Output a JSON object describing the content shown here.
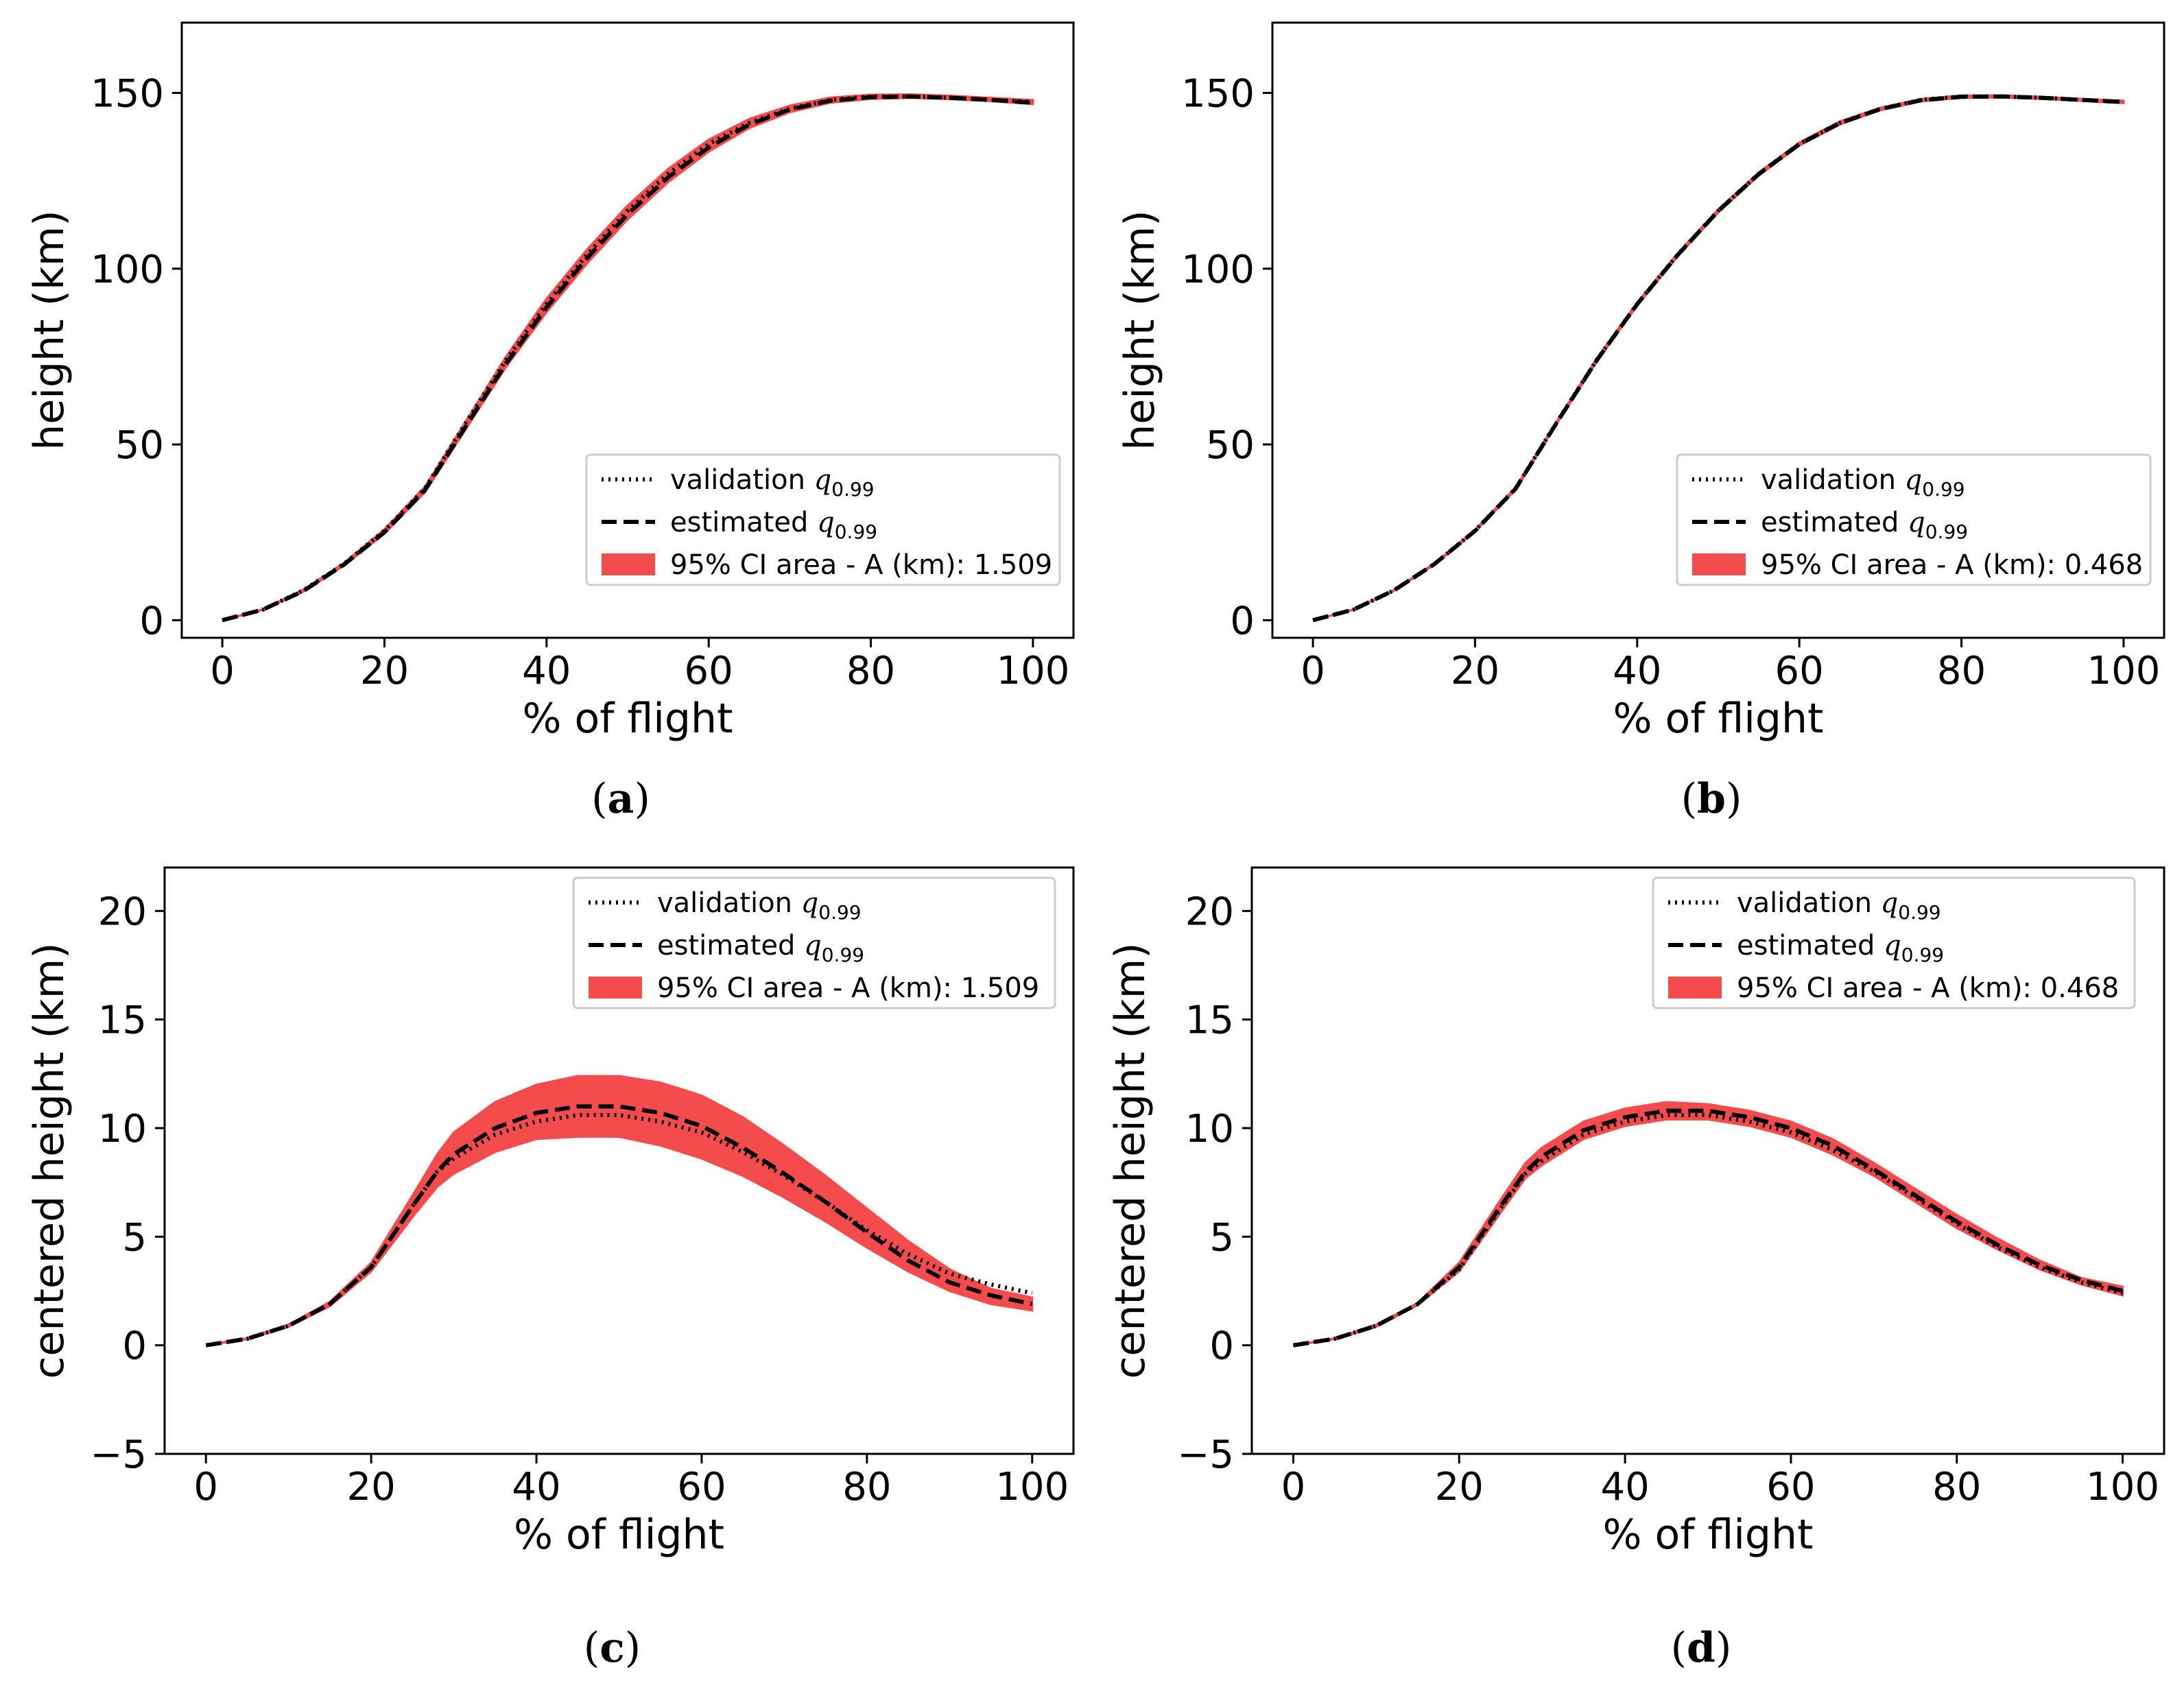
{
  "chart_data": [
    {
      "type": "line",
      "panel": "a",
      "caption": "(a)",
      "title": "",
      "xlabel": "% of flight",
      "ylabel": "height (km)",
      "xlim": [
        -5,
        105
      ],
      "ylim": [
        -5,
        170
      ],
      "xticks": [
        0,
        20,
        40,
        60,
        80,
        100
      ],
      "yticks": [
        0,
        50,
        100,
        150
      ],
      "grid": false,
      "legend_position": "lower-right",
      "x": [
        0,
        5,
        10,
        15,
        20,
        25,
        30,
        35,
        40,
        45,
        50,
        55,
        60,
        65,
        70,
        75,
        80,
        85,
        90,
        95,
        100
      ],
      "series": [
        {
          "name": "validation q0.99",
          "label_main": "validation ",
          "label_sub": "0.99",
          "style": "dotted",
          "values": [
            0,
            3,
            8.5,
            16,
            25.5,
            37.5,
            56,
            74,
            90,
            104,
            116.5,
            127,
            135.5,
            141.5,
            145.5,
            148,
            149,
            149,
            148.6,
            148,
            147.5
          ]
        },
        {
          "name": "estimated q0.99",
          "label_main": "estimated ",
          "label_sub": "0.99",
          "style": "dashed",
          "values": [
            0,
            3,
            8.3,
            15.8,
            25,
            37,
            55,
            73,
            89,
            103,
            115.5,
            126,
            134.5,
            141,
            145.3,
            147.8,
            148.8,
            149,
            148.6,
            148,
            147.2
          ]
        },
        {
          "name": "95% CI area - A (km): 1.509",
          "style": "band",
          "color": "#f44c4c",
          "lower": [
            0,
            2.9,
            8.1,
            15.5,
            24.6,
            36.4,
            54.2,
            72,
            87.6,
            101.5,
            114,
            124.6,
            133.3,
            140,
            144.5,
            147.2,
            148.3,
            148.6,
            148.2,
            147.6,
            146.8
          ],
          "upper": [
            0,
            3.1,
            8.7,
            16.3,
            25.9,
            38,
            56.5,
            75,
            91.5,
            105.5,
            118,
            128.4,
            136.7,
            142.6,
            146.4,
            148.7,
            149.5,
            149.6,
            149.2,
            148.6,
            148
          ]
        }
      ]
    },
    {
      "type": "line",
      "panel": "b",
      "caption": "(b)",
      "title": "",
      "xlabel": "% of flight",
      "ylabel": "height (km)",
      "xlim": [
        -5,
        105
      ],
      "ylim": [
        -5,
        170
      ],
      "xticks": [
        0,
        20,
        40,
        60,
        80,
        100
      ],
      "yticks": [
        0,
        50,
        100,
        150
      ],
      "grid": false,
      "legend_position": "lower-right",
      "x": [
        0,
        5,
        10,
        15,
        20,
        25,
        30,
        35,
        40,
        45,
        50,
        55,
        60,
        65,
        70,
        75,
        80,
        85,
        90,
        95,
        100
      ],
      "series": [
        {
          "name": "validation q0.99",
          "label_main": "validation ",
          "label_sub": "0.99",
          "style": "dotted",
          "values": [
            0,
            3,
            8.5,
            16,
            25.5,
            37.5,
            56,
            74,
            90,
            104,
            116.5,
            127,
            135.5,
            141.5,
            145.5,
            148,
            149,
            149,
            148.6,
            148,
            147.5
          ]
        },
        {
          "name": "estimated q0.99",
          "label_main": "estimated ",
          "label_sub": "0.99",
          "style": "dashed",
          "values": [
            0,
            3,
            8.5,
            16,
            25.4,
            37.4,
            55.9,
            73.9,
            89.9,
            103.9,
            116.4,
            126.9,
            135.4,
            141.4,
            145.4,
            147.9,
            148.9,
            149,
            148.6,
            148,
            147.4
          ]
        },
        {
          "name": "95% CI area - A (km): 0.468",
          "style": "band",
          "color": "#f44c4c",
          "lower": [
            0,
            2.95,
            8.4,
            15.8,
            25.2,
            37.1,
            55.6,
            73.5,
            89.5,
            103.5,
            116,
            126.5,
            135,
            141,
            145.1,
            147.6,
            148.6,
            148.7,
            148.3,
            147.7,
            147.1
          ],
          "upper": [
            0,
            3.05,
            8.6,
            16.2,
            25.7,
            37.8,
            56.3,
            74.4,
            90.4,
            104.4,
            116.9,
            127.4,
            135.9,
            141.9,
            145.8,
            148.3,
            149.3,
            149.3,
            148.9,
            148.3,
            147.8
          ]
        }
      ]
    },
    {
      "type": "line",
      "panel": "c",
      "caption": "(c)",
      "title": "",
      "xlabel": "% of flight",
      "ylabel": "centered height (km)",
      "xlim": [
        -5,
        105
      ],
      "ylim": [
        -5,
        22
      ],
      "xticks": [
        0,
        20,
        40,
        60,
        80,
        100
      ],
      "yticks": [
        -5,
        0,
        5,
        10,
        15,
        20
      ],
      "grid": false,
      "legend_position": "top-right",
      "x": [
        0,
        5,
        10,
        15,
        20,
        25,
        28,
        30,
        35,
        40,
        45,
        50,
        55,
        60,
        65,
        70,
        75,
        80,
        85,
        90,
        95,
        100
      ],
      "series": [
        {
          "name": "validation q0.99",
          "label_main": "validation ",
          "label_sub": "0.99",
          "style": "dotted",
          "values": [
            0,
            0.3,
            0.9,
            1.9,
            3.6,
            6.4,
            8.0,
            8.6,
            9.7,
            10.3,
            10.6,
            10.6,
            10.3,
            9.8,
            8.9,
            7.8,
            6.6,
            5.3,
            4.2,
            3.3,
            2.8,
            2.4
          ]
        },
        {
          "name": "estimated q0.99",
          "label_main": "estimated ",
          "label_sub": "0.99",
          "style": "dashed",
          "values": [
            0,
            0.3,
            0.9,
            1.9,
            3.6,
            6.4,
            8.0,
            8.8,
            10.0,
            10.7,
            11.0,
            11.0,
            10.7,
            10.1,
            9.1,
            7.9,
            6.6,
            5.2,
            3.9,
            2.9,
            2.3,
            1.9
          ]
        },
        {
          "name": "95% CI area - A (km): 1.509",
          "style": "band",
          "color": "#f44c4c",
          "lower": [
            0,
            0.28,
            0.85,
            1.8,
            3.4,
            5.9,
            7.3,
            7.9,
            8.9,
            9.5,
            9.6,
            9.6,
            9.2,
            8.6,
            7.8,
            6.8,
            5.7,
            4.5,
            3.4,
            2.5,
            1.9,
            1.6
          ]
        },
        {
          "name": "band_upper_c",
          "style": "band_upper",
          "upper": [
            0,
            0.32,
            0.95,
            2.0,
            3.8,
            6.9,
            8.8,
            9.8,
            11.2,
            12.0,
            12.4,
            12.4,
            12.1,
            11.5,
            10.5,
            9.2,
            7.8,
            6.3,
            4.8,
            3.5,
            2.6,
            2.2
          ]
        }
      ]
    },
    {
      "type": "line",
      "panel": "d",
      "caption": "(d)",
      "title": "",
      "xlabel": "% of flight",
      "ylabel": "centered height (km)",
      "xlim": [
        -5,
        105
      ],
      "ylim": [
        -5,
        22
      ],
      "xticks": [
        0,
        20,
        40,
        60,
        80,
        100
      ],
      "yticks": [
        -5,
        0,
        5,
        10,
        15,
        20
      ],
      "grid": false,
      "legend_position": "top-right",
      "x": [
        0,
        5,
        10,
        15,
        20,
        25,
        28,
        30,
        35,
        40,
        45,
        50,
        55,
        60,
        65,
        70,
        75,
        80,
        85,
        90,
        95,
        100
      ],
      "series": [
        {
          "name": "validation q0.99",
          "label_main": "validation ",
          "label_sub": "0.99",
          "style": "dotted",
          "values": [
            0,
            0.3,
            0.9,
            1.9,
            3.5,
            6.3,
            7.9,
            8.5,
            9.7,
            10.3,
            10.6,
            10.6,
            10.3,
            9.8,
            9.0,
            8.0,
            6.8,
            5.6,
            4.5,
            3.6,
            2.9,
            2.4
          ]
        },
        {
          "name": "estimated q0.99",
          "label_main": "estimated ",
          "label_sub": "0.99",
          "style": "dashed",
          "values": [
            0,
            0.3,
            0.9,
            1.9,
            3.6,
            6.4,
            8.0,
            8.7,
            9.9,
            10.5,
            10.8,
            10.8,
            10.5,
            10.0,
            9.2,
            8.1,
            6.9,
            5.7,
            4.6,
            3.7,
            3.0,
            2.5
          ]
        },
        {
          "name": "95% CI area - A (km): 0.468",
          "style": "band",
          "color": "#f44c4c",
          "lower": [
            0,
            0.28,
            0.85,
            1.85,
            3.4,
            6.1,
            7.7,
            8.3,
            9.5,
            10.1,
            10.4,
            10.4,
            10.1,
            9.6,
            8.8,
            7.8,
            6.6,
            5.4,
            4.4,
            3.5,
            2.8,
            2.3
          ]
        },
        {
          "name": "band_upper_d",
          "style": "band_upper",
          "upper": [
            0,
            0.32,
            0.95,
            1.95,
            3.8,
            6.7,
            8.4,
            9.1,
            10.3,
            10.9,
            11.2,
            11.1,
            10.8,
            10.3,
            9.5,
            8.4,
            7.2,
            6.0,
            4.9,
            3.9,
            3.1,
            2.7
          ]
        }
      ]
    }
  ]
}
